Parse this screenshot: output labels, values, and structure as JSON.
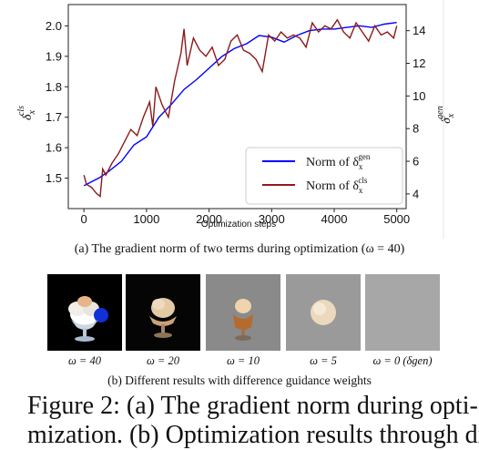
{
  "chart_data": {
    "type": "line",
    "xlabel": "Optimization steps",
    "ylabel_left": "δ_x^cls",
    "ylabel_right": "δ_x^gen",
    "xlim": [
      -250,
      5150
    ],
    "ylim_left": [
      1.4,
      2.07
    ],
    "ylim_right": [
      3.1,
      15.6
    ],
    "xticks": [
      0,
      1000,
      2000,
      3000,
      4000,
      5000
    ],
    "yticks_left": [
      1.5,
      1.6,
      1.7,
      1.8,
      1.9,
      2.0
    ],
    "yticks_right": [
      4,
      6,
      8,
      10,
      12,
      14
    ],
    "legend_position": "bottom-right",
    "series": [
      {
        "name": "Norm of δ_x^gen",
        "axis": "right",
        "color": "#0000ff",
        "x": [
          0,
          150,
          250,
          400,
          600,
          800,
          1000,
          1200,
          1400,
          1600,
          1800,
          2000,
          2200,
          2400,
          2600,
          2800,
          3000,
          3200,
          3400,
          3600,
          3800,
          4000,
          4200,
          4400,
          4600,
          4800,
          5000
        ],
        "values": [
          4.5,
          4.8,
          5.0,
          5.4,
          6.0,
          7.0,
          7.5,
          8.7,
          9.5,
          10.4,
          11.0,
          11.7,
          12.4,
          12.9,
          13.2,
          13.7,
          13.6,
          13.3,
          13.7,
          14.0,
          14.1,
          14.1,
          14.2,
          14.3,
          14.2,
          14.4,
          14.5
        ]
      },
      {
        "name": "Norm of δ_x^cls",
        "axis": "left",
        "color": "#8b1a1a",
        "x": [
          0,
          40,
          120,
          200,
          260,
          300,
          350,
          450,
          550,
          650,
          750,
          850,
          950,
          1050,
          1100,
          1150,
          1250,
          1350,
          1450,
          1550,
          1600,
          1650,
          1750,
          1850,
          1950,
          2050,
          2150,
          2250,
          2350,
          2450,
          2550,
          2650,
          2750,
          2850,
          2950,
          3050,
          3150,
          3250,
          3350,
          3450,
          3550,
          3650,
          3750,
          3850,
          3950,
          4050,
          4150,
          4250,
          4350,
          4450,
          4550,
          4650,
          4750,
          4850,
          4950,
          5000
        ],
        "values": [
          1.51,
          1.48,
          1.47,
          1.45,
          1.44,
          1.53,
          1.51,
          1.55,
          1.58,
          1.62,
          1.66,
          1.64,
          1.7,
          1.75,
          1.67,
          1.8,
          1.74,
          1.7,
          1.82,
          1.91,
          1.99,
          1.87,
          1.96,
          1.92,
          1.9,
          1.93,
          1.87,
          1.89,
          1.95,
          1.97,
          1.92,
          1.91,
          1.89,
          1.85,
          1.97,
          1.95,
          1.98,
          1.96,
          1.97,
          1.96,
          1.93,
          2.01,
          1.98,
          2.0,
          1.99,
          2.02,
          1.98,
          1.96,
          2.01,
          1.98,
          1.95,
          2.0,
          1.97,
          1.98,
          1.96,
          2.0
        ]
      }
    ]
  },
  "figure": {
    "caption_a": "(a) The gradient norm of two terms during optimization (ω = 40)",
    "caption_b": "(b) Different results with difference guidance weights",
    "omega_labels": [
      "ω = 40",
      "ω = 20",
      "ω = 10",
      "ω = 5",
      "ω = 0 (δgen)"
    ],
    "figure_caption_line1": "Figure 2:  (a) The gradient norm during opti-",
    "figure_caption_line2": "mization.  (b) Optimization results through dif-"
  }
}
